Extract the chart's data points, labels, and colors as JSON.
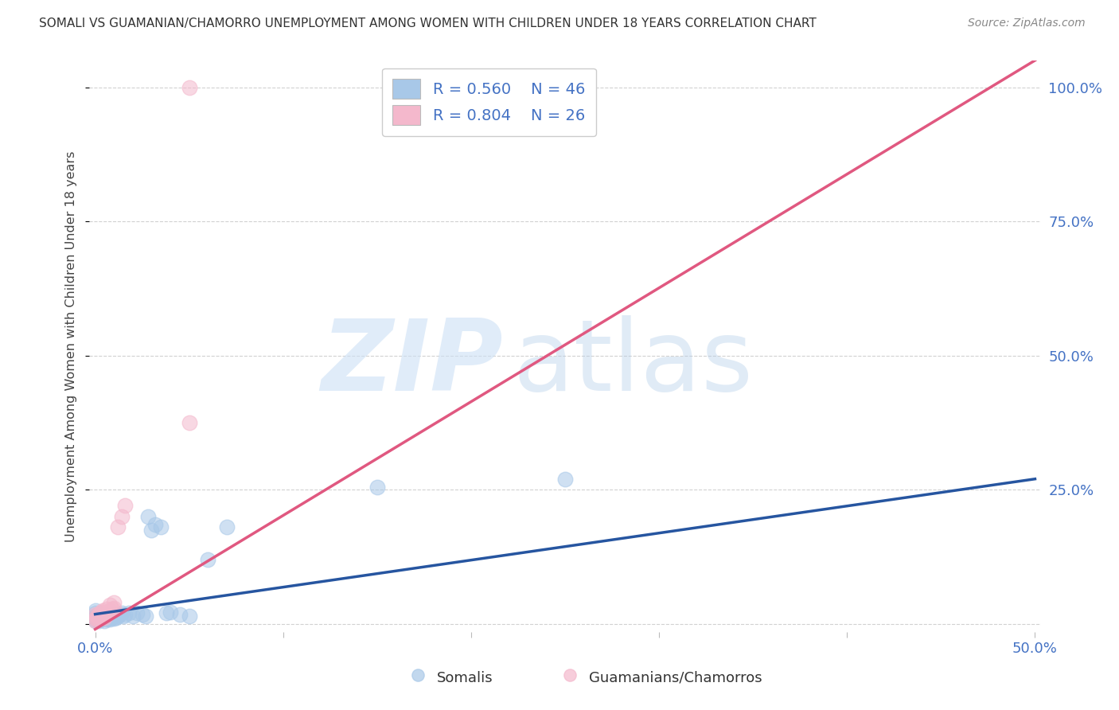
{
  "title": "SOMALI VS GUAMANIAN/CHAMORRO UNEMPLOYMENT AMONG WOMEN WITH CHILDREN UNDER 18 YEARS CORRELATION CHART",
  "source": "Source: ZipAtlas.com",
  "ylabel": "Unemployment Among Women with Children Under 18 years",
  "xlim": [
    -0.003,
    0.503
  ],
  "ylim": [
    -0.015,
    1.05
  ],
  "blue_scatter_color": "#a8c8e8",
  "pink_scatter_color": "#f4b8cc",
  "blue_line_color": "#2655a0",
  "pink_line_color": "#e05880",
  "blue_R": "0.560",
  "blue_N": "46",
  "pink_R": "0.804",
  "pink_N": "26",
  "legend_label_blue": "Somalis",
  "legend_label_pink": "Guamanians/Chamorros",
  "axis_label_color": "#4472c4",
  "title_color": "#333333",
  "source_color": "#888888",
  "grid_color": "#cccccc",
  "background_color": "#ffffff",
  "somali_x": [
    0.0,
    0.0,
    0.0,
    0.0,
    0.0,
    0.0,
    0.0,
    0.002,
    0.002,
    0.003,
    0.003,
    0.004,
    0.005,
    0.005,
    0.005,
    0.006,
    0.006,
    0.007,
    0.008,
    0.008,
    0.009,
    0.01,
    0.01,
    0.011,
    0.012,
    0.013,
    0.014,
    0.015,
    0.016,
    0.018,
    0.02,
    0.022,
    0.025,
    0.027,
    0.028,
    0.03,
    0.032,
    0.035,
    0.038,
    0.04,
    0.045,
    0.05,
    0.06,
    0.07,
    0.15,
    0.25
  ],
  "somali_y": [
    0.005,
    0.008,
    0.01,
    0.012,
    0.015,
    0.02,
    0.025,
    0.005,
    0.012,
    0.008,
    0.015,
    0.01,
    0.005,
    0.012,
    0.018,
    0.008,
    0.015,
    0.01,
    0.008,
    0.015,
    0.012,
    0.01,
    0.018,
    0.012,
    0.015,
    0.018,
    0.02,
    0.015,
    0.018,
    0.02,
    0.015,
    0.02,
    0.018,
    0.015,
    0.2,
    0.175,
    0.185,
    0.18,
    0.02,
    0.022,
    0.018,
    0.015,
    0.12,
    0.18,
    0.255,
    0.27
  ],
  "guam_x": [
    0.0,
    0.0,
    0.0,
    0.001,
    0.001,
    0.002,
    0.002,
    0.003,
    0.003,
    0.004,
    0.004,
    0.005,
    0.005,
    0.006,
    0.006,
    0.007,
    0.008,
    0.008,
    0.009,
    0.01,
    0.01,
    0.012,
    0.014,
    0.016,
    0.05,
    0.05
  ],
  "guam_y": [
    0.005,
    0.01,
    0.018,
    0.008,
    0.015,
    0.01,
    0.018,
    0.012,
    0.022,
    0.015,
    0.025,
    0.012,
    0.02,
    0.018,
    0.028,
    0.02,
    0.025,
    0.035,
    0.028,
    0.03,
    0.04,
    0.18,
    0.2,
    0.22,
    0.375,
    1.0
  ],
  "blue_line_x": [
    0.0,
    0.5
  ],
  "blue_line_y": [
    0.018,
    0.27
  ],
  "pink_line_x": [
    0.0,
    0.5
  ],
  "pink_line_y": [
    -0.01,
    1.05
  ]
}
